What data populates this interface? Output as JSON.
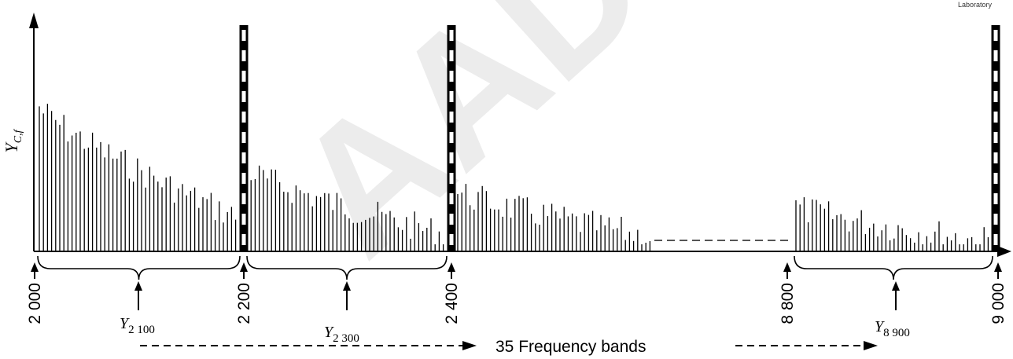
{
  "corner_text": "Laboratory",
  "y_axis_label": {
    "symbol": "Y",
    "subscript": "C,f"
  },
  "tick_labels": [
    "2 000",
    "2 200",
    "2 400",
    "8 800",
    "9 000"
  ],
  "band_labels": [
    {
      "symbol": "Y",
      "subscript": "2 100"
    },
    {
      "symbol": "Y",
      "subscript": "2 300"
    },
    {
      "symbol": "Y",
      "subscript": "8 900"
    }
  ],
  "footer_label": "35 Frequency bands",
  "watermark_text": "AAD",
  "colors": {
    "ink": "#000000",
    "watermark": "#e6e6e6"
  }
}
